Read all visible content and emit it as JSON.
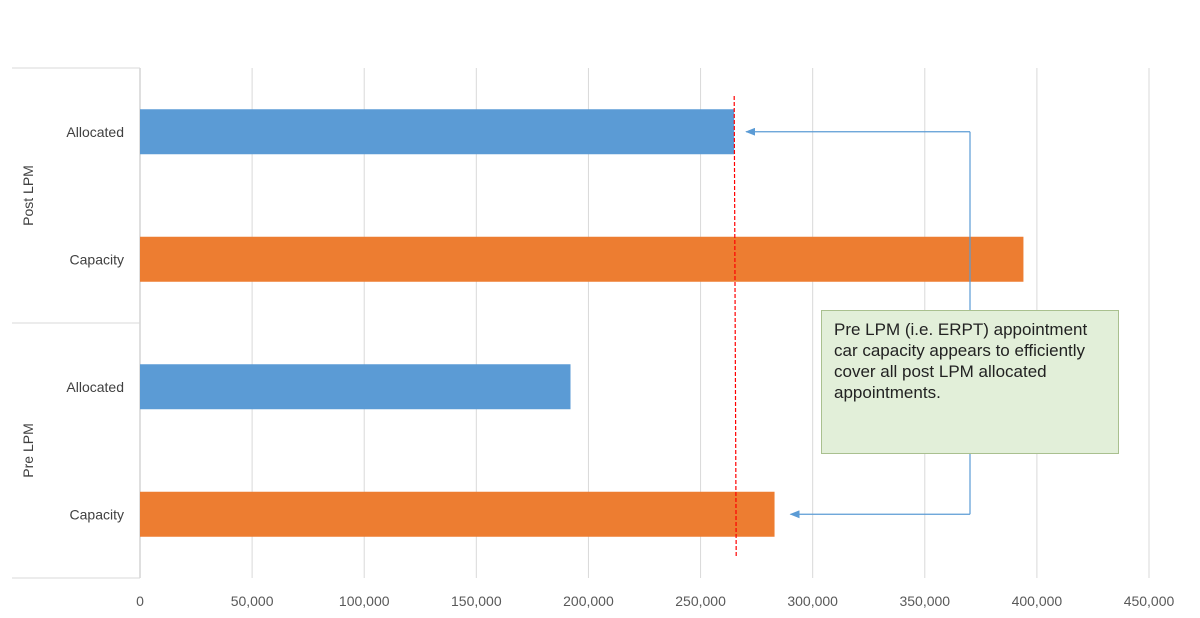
{
  "chart_data": {
    "type": "bar",
    "orientation": "horizontal",
    "groups": [
      {
        "label": "Post LPM",
        "bars": [
          {
            "category": "Allocated",
            "value": 265000,
            "color": "#5b9bd5"
          },
          {
            "category": "Capacity",
            "value": 394000,
            "color": "#ed7d31"
          }
        ]
      },
      {
        "label": "Pre LPM",
        "bars": [
          {
            "category": "Allocated",
            "value": 192000,
            "color": "#5b9bd5"
          },
          {
            "category": "Capacity",
            "value": 283000,
            "color": "#ed7d31"
          }
        ]
      }
    ],
    "xlim": [
      0,
      450000
    ],
    "xticks": [
      0,
      50000,
      100000,
      150000,
      200000,
      250000,
      300000,
      350000,
      400000,
      450000
    ],
    "xtick_labels": [
      "0",
      "50,000",
      "100,000",
      "150,000",
      "200,000",
      "250,000",
      "300,000",
      "350,000",
      "400,000",
      "450,000"
    ],
    "reference_line": {
      "value": 265000,
      "color": "#ff0000",
      "style": "dashed"
    },
    "grid": "vertical",
    "legend": "none",
    "title": "",
    "xlabel": "",
    "ylabel": ""
  },
  "annotation": {
    "text": "Pre LPM (i.e. ERPT) appointment car capacity appears to efficiently cover all post LPM allocated appointments.",
    "background": "#e2efd9",
    "border": "#a9c08f",
    "arrow_color": "#5b9bd5"
  }
}
